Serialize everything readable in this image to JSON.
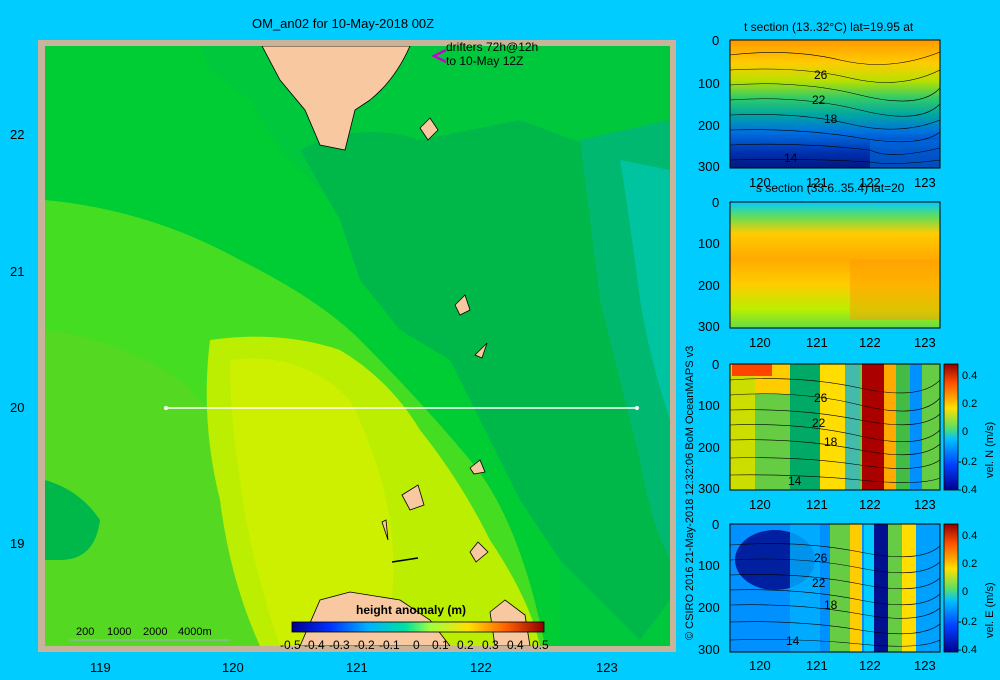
{
  "main_map": {
    "title": "OM_an02 for 10-May-2018 00Z",
    "drifters_line1": "drifters 72h@12h",
    "drifters_line2": "to 10-May 12Z",
    "x_ticks": [
      "119",
      "120",
      "121",
      "122",
      "123"
    ],
    "y_ticks": [
      "22",
      "21",
      "20",
      "19"
    ],
    "depth_legend": [
      "200",
      "1000",
      "2000",
      "4000m"
    ],
    "colorbar_title": "height anomaly  (m)",
    "colorbar_ticks": [
      "-0.5",
      "-0.4",
      "-0.3",
      "-0.2",
      "-0.1",
      "0",
      "0.1",
      "0.2",
      "0.3",
      "0.4",
      "0.5"
    ],
    "section_line": {
      "lat": 20,
      "lon_start": 119.5,
      "lon_end": 123.2
    }
  },
  "side_panels": {
    "t_section_title": "t section (13..32°C) lat=19.95 at",
    "s_section_title": "s section (33.6..35.4) lat=20",
    "x_ticks": [
      "120",
      "121",
      "122",
      "123"
    ],
    "y_ticks_t": [
      "0",
      "100",
      "200",
      "300"
    ],
    "y_ticks_s": [
      "0",
      "100",
      "200",
      "300"
    ],
    "y_ticks_n": [
      "0",
      "100",
      "200",
      "300"
    ],
    "y_ticks_e": [
      "0",
      "100",
      "200",
      "300"
    ],
    "contour_labels_t": [
      "26",
      "22",
      "18",
      "14"
    ],
    "contour_labels_n": [
      "26",
      "22",
      "18",
      "14"
    ],
    "contour_labels_e": [
      "26",
      "22",
      "18",
      "14"
    ],
    "vel_n_label": "vel. N (m/s)",
    "vel_e_label": "vel. E (m/s)",
    "vel_ticks": [
      "0.4",
      "0.2",
      "0",
      "-0.2",
      "-0.4"
    ]
  },
  "credit": "© CSIRO 2016   21-May-2018 12:32:06 BoM OceanMAPS v3",
  "chart_data": [
    {
      "type": "heatmap",
      "title": "OM_an02 for 10-May-2018 00Z",
      "variable": "height anomaly (m)",
      "xlim": [
        118.55,
        123.45
      ],
      "ylim": [
        18.2,
        22.7
      ],
      "color_range": [
        -0.5,
        0.5
      ],
      "x_ticks": [
        119,
        120,
        121,
        122,
        123
      ],
      "y_ticks": [
        19,
        20,
        21,
        22
      ]
    },
    {
      "type": "heatmap",
      "title": "t section (13..32°C) lat=19.95 at",
      "xlim": [
        119.6,
        123.3
      ],
      "ylim": [
        300,
        0
      ],
      "contours": [
        26,
        22,
        18,
        14
      ]
    },
    {
      "type": "heatmap",
      "title": "s section (33.6..35.4) lat=20",
      "xlim": [
        119.6,
        123.3
      ],
      "ylim": [
        300,
        0
      ]
    },
    {
      "type": "heatmap",
      "title": "vel. N (m/s)",
      "xlim": [
        119.6,
        123.3
      ],
      "ylim": [
        300,
        0
      ],
      "color_range": [
        -0.4,
        0.4
      ]
    },
    {
      "type": "heatmap",
      "title": "vel. E (m/s)",
      "xlim": [
        119.6,
        123.3
      ],
      "ylim": [
        300,
        0
      ],
      "color_range": [
        -0.4,
        0.4
      ]
    }
  ]
}
